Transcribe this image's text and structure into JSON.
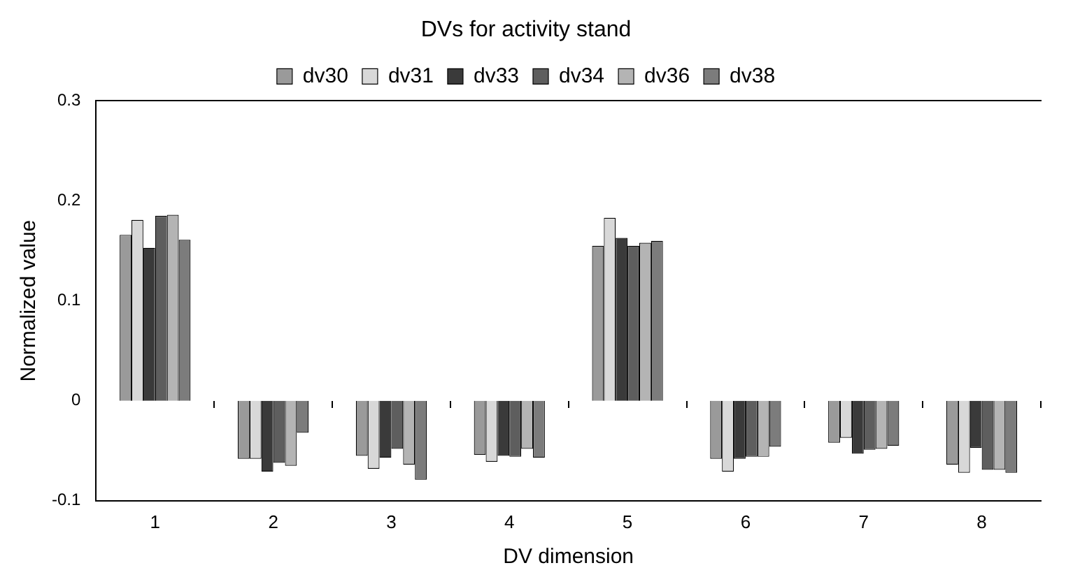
{
  "chart_data": {
    "type": "bar",
    "title": "DVs for activity stand",
    "xlabel": "DV dimension",
    "ylabel": "Normalized value",
    "categories": [
      "1",
      "2",
      "3",
      "4",
      "5",
      "6",
      "7",
      "8"
    ],
    "series": [
      {
        "name": "dv30",
        "color": "#9a9a9a",
        "values": [
          0.166,
          -0.058,
          -0.055,
          -0.054,
          0.155,
          -0.058,
          -0.042,
          -0.064
        ]
      },
      {
        "name": "dv31",
        "color": "#d8d8d8",
        "values": [
          0.181,
          -0.058,
          -0.068,
          -0.061,
          0.183,
          -0.071,
          -0.037,
          -0.072
        ]
      },
      {
        "name": "dv33",
        "color": "#3a3a3a",
        "values": [
          0.153,
          -0.071,
          -0.057,
          -0.055,
          0.163,
          -0.058,
          -0.053,
          -0.047
        ]
      },
      {
        "name": "dv34",
        "color": "#5e5e5e",
        "values": [
          0.185,
          -0.062,
          -0.048,
          -0.056,
          0.155,
          -0.056,
          -0.049,
          -0.069
        ]
      },
      {
        "name": "dv36",
        "color": "#b4b4b4",
        "values": [
          0.186,
          -0.065,
          -0.064,
          -0.048,
          0.158,
          -0.056,
          -0.048,
          -0.069
        ]
      },
      {
        "name": "dv38",
        "color": "#7c7c7c",
        "values": [
          0.161,
          -0.032,
          -0.079,
          -0.057,
          0.16,
          -0.046,
          -0.045,
          -0.072
        ]
      }
    ],
    "ylim": [
      -0.1,
      0.3
    ],
    "yticks": [
      -0.1,
      0,
      0.1,
      0.2,
      0.3
    ],
    "grid": false,
    "legend": "top"
  }
}
